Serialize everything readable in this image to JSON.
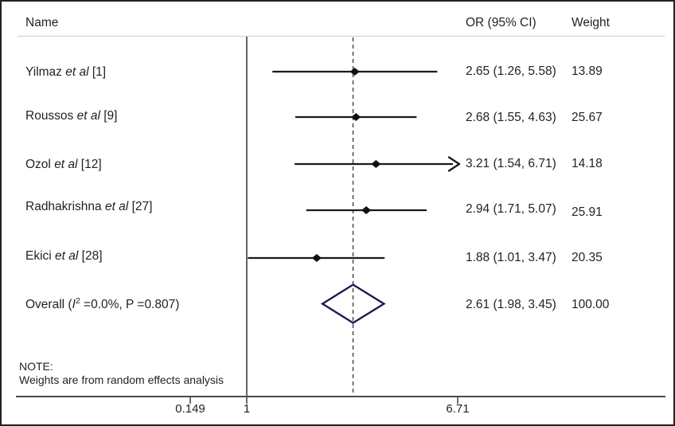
{
  "chart_data": {
    "type": "forest",
    "scale": "log",
    "title": "",
    "columns": {
      "name": "Name",
      "or_ci": "OR (95% CI)",
      "weight": "Weight"
    },
    "x_axis": {
      "ticks": [
        "0.149",
        "1",
        "6.71"
      ],
      "null_line": 1,
      "max": 6.71,
      "grid": false
    },
    "overall_dashed_line_at": 2.61,
    "studies": [
      {
        "segments": [
          {
            "t": "Yilmaz ",
            "s": "n"
          },
          {
            "t": "et al",
            "s": "i"
          },
          {
            "t": " [1]",
            "s": "n"
          }
        ],
        "or": 2.65,
        "lo": 1.26,
        "hi": 5.58,
        "or_ci": "2.65 (1.26, 5.58)",
        "weight": "13.89",
        "arrow": false
      },
      {
        "segments": [
          {
            "t": "Roussos ",
            "s": "n"
          },
          {
            "t": "et al",
            "s": "i"
          },
          {
            "t": " [9]",
            "s": "n"
          }
        ],
        "or": 2.68,
        "lo": 1.55,
        "hi": 4.63,
        "or_ci": "2.68 (1.55, 4.63)",
        "weight": "25.67",
        "arrow": false
      },
      {
        "segments": [
          {
            "t": "Ozol ",
            "s": "n"
          },
          {
            "t": "et al",
            "s": "i"
          },
          {
            "t": " [12]",
            "s": "n"
          }
        ],
        "or": 3.21,
        "lo": 1.54,
        "hi": 6.71,
        "or_ci": "3.21 (1.54, 6.71)",
        "weight": "14.18",
        "arrow": true
      },
      {
        "segments": [
          {
            "t": "Radhakrishna ",
            "s": "n"
          },
          {
            "t": "et al",
            "s": "i"
          },
          {
            "t": " [27]",
            "s": "n"
          }
        ],
        "or": 2.94,
        "lo": 1.71,
        "hi": 5.07,
        "or_ci": "2.94 (1.71, 5.07)",
        "weight": "25.91",
        "arrow": false
      },
      {
        "segments": [
          {
            "t": "Ekici ",
            "s": "n"
          },
          {
            "t": "et al",
            "s": "i"
          },
          {
            "t": " [28]",
            "s": "n"
          }
        ],
        "or": 1.88,
        "lo": 1.01,
        "hi": 3.47,
        "or_ci": "1.88 (1.01, 3.47)",
        "weight": "20.35",
        "arrow": false
      }
    ],
    "overall": {
      "segments": [
        {
          "t": "Overall (",
          "s": "n"
        },
        {
          "t": "I",
          "s": "i"
        },
        {
          "t": "2",
          "s": "sup"
        },
        {
          "t": " =0.0%, P =0.807)",
          "s": "n"
        }
      ],
      "or": 2.61,
      "lo": 1.98,
      "hi": 3.45,
      "or_ci": "2.61 (1.98, 3.45)",
      "weight": "100.00"
    },
    "note_lines": [
      "NOTE:",
      "Weights are from random effects analysis"
    ],
    "colors": {
      "ci_line": "#1a1a1a",
      "marker": "#111111",
      "diamond_outline": "#1b1b55",
      "axis": "#4a4a4a",
      "dashed_line": "#4a4a4a",
      "text": "#231f20",
      "header_rule": "#cccccc",
      "frame_border": "#232323"
    }
  }
}
